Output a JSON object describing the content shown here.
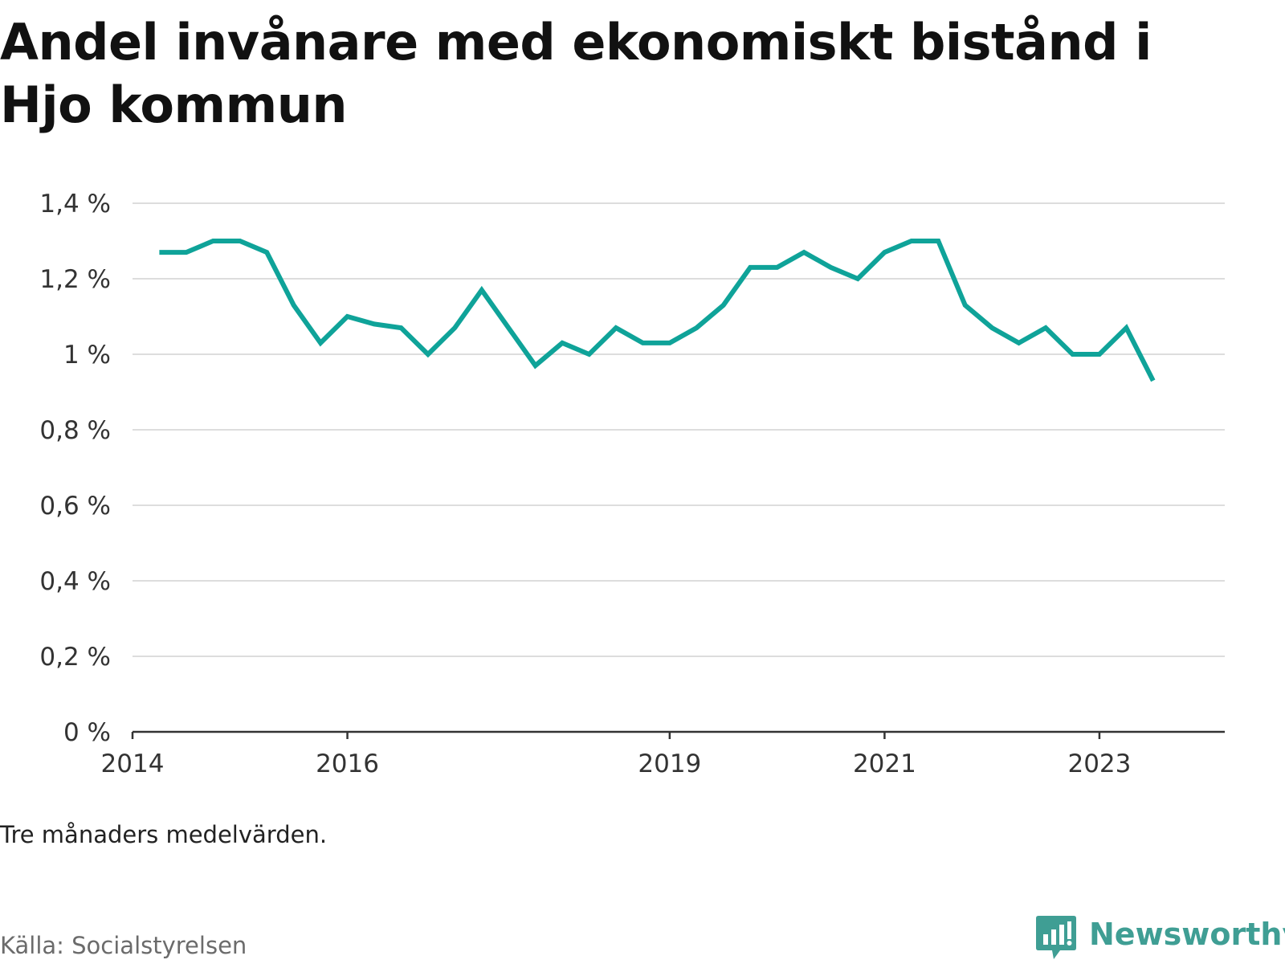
{
  "title": "Andel invånare med ekonomiskt bistånd i Hjo kommun",
  "note": "Tre månaders medelvärden.",
  "source": "Källa: Socialstyrelsen",
  "brand": "Newsworthy",
  "colors": {
    "line": "#0fa399",
    "grid": "#dddddd",
    "axis": "#333333",
    "brand": "#3f9e94"
  },
  "chart_data": {
    "type": "line",
    "title": "Andel invånare med ekonomiskt bistånd i Hjo kommun",
    "xlabel": "",
    "ylabel": "",
    "x_ticks": [
      "2014",
      "2016",
      "2019",
      "2021",
      "2023"
    ],
    "y_ticks": [
      "0 %",
      "0,2 %",
      "0,4 %",
      "0,6 %",
      "0,8 %",
      "1 %",
      "1,2 %",
      "1,4 %"
    ],
    "ylim": [
      0,
      1.4
    ],
    "xlim": [
      "2014-01",
      "2024-03"
    ],
    "grid": true,
    "legend": "none",
    "series": [
      {
        "x": [
          "2014-04",
          "2014-07",
          "2014-10",
          "2015-01",
          "2015-04",
          "2015-07",
          "2015-10",
          "2016-01",
          "2016-04",
          "2016-07",
          "2016-10",
          "2017-01",
          "2017-04",
          "2017-07",
          "2017-10",
          "2018-01",
          "2018-04",
          "2018-07",
          "2018-10",
          "2019-01",
          "2019-04",
          "2019-07",
          "2019-10",
          "2020-01",
          "2020-04",
          "2020-07",
          "2020-10",
          "2021-01",
          "2021-04",
          "2021-07",
          "2021-10",
          "2022-01",
          "2022-04",
          "2022-07",
          "2022-10",
          "2023-01",
          "2023-04",
          "2023-07"
        ],
        "values": [
          1.27,
          1.27,
          1.3,
          1.3,
          1.27,
          1.13,
          1.03,
          1.1,
          1.08,
          1.07,
          1.0,
          1.07,
          1.17,
          1.07,
          0.97,
          1.03,
          1.0,
          1.07,
          1.03,
          1.03,
          1.07,
          1.13,
          1.23,
          1.23,
          1.27,
          1.23,
          1.2,
          1.27,
          1.3,
          1.3,
          1.13,
          1.07,
          1.03,
          1.07,
          1.0,
          1.0,
          1.07,
          0.93
        ]
      }
    ]
  }
}
